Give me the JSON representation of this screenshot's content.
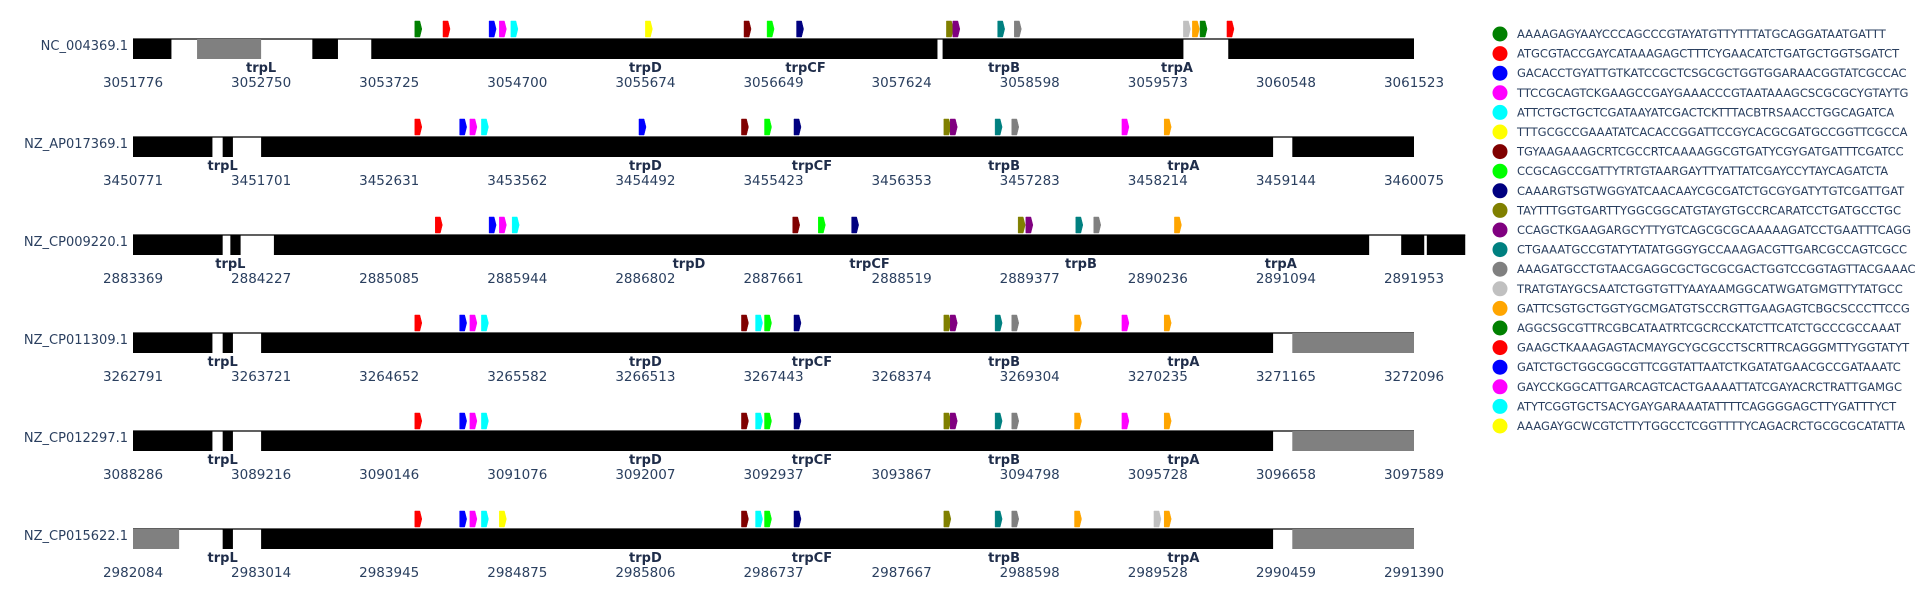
{
  "chart_data": {
    "type": "genome-track",
    "colors": {
      "gene": "#000000",
      "gray_region": "#808080",
      "axis_text": "#2a3f5f"
    },
    "motifs": [
      {
        "color": "#008000",
        "sequence": "AAAAGAGYAAYCCCAGCCCGTAYATGTTYTTTATGCAGGATAATGATTT"
      },
      {
        "color": "#ff0000",
        "sequence": "ATGCGTACCGAYCATAAAGAGCTTTCYGAACATCTGATGCTGGTSGATCT"
      },
      {
        "color": "#0000ff",
        "sequence": "GACACCTGYATTGTKATCCGCTCSGCGCTGGTGGARAACGGTATCGCCAC"
      },
      {
        "color": "#ff00ff",
        "sequence": "TTCCGCAGTCKGAAGCCGAYGAAACCCGTAATAAAGCSCGCGCYGTAYTG"
      },
      {
        "color": "#00ffff",
        "sequence": "ATTCTGCTGCTCGATAAYATCGACTCKTTTACBTRSAACCTGGCAGATCA"
      },
      {
        "color": "#ffff00",
        "sequence": "TTTGCGCCGAAATATCACACCGGATTCCGYCACGCGATGCCGGTTCGCCA"
      },
      {
        "color": "#800000",
        "sequence": "TGYAAGAAAGCRTCGCCRTCAAAAGGCGTGATYCGYGATGATTTCGATCC"
      },
      {
        "color": "#00ff00",
        "sequence": "CCGCAGCCGATTYTRTGTAARGAYTTYATTATCGAYCCYTAYCAGATCTA"
      },
      {
        "color": "#000080",
        "sequence": "CAAARGTSGTWGGYATCAACAAYCGCGATCTGCGYGATYTGTCGATTGAT"
      },
      {
        "color": "#808000",
        "sequence": "TAYTTTGGTGARTTYGGCGGCATGTAYGTGCCRCARATCCTGATGCCTGC"
      },
      {
        "color": "#800080",
        "sequence": "CCAGCTKGAAGARGCYTTYGTCAGCGCGCAAAAAGATCCTGAATTTCAGG"
      },
      {
        "color": "#008080",
        "sequence": "CTGAAATGCCGTATYTATATGGGYGCCAAAGACGTTGARCGCCAGTCGCC"
      },
      {
        "color": "#808080",
        "sequence": "AAAGATGCCTGTAACGAGGCGCTGCGCGACTGGTCCGGTAGTTACGAAAC"
      },
      {
        "color": "#c0c0c0",
        "sequence": "TRATGTAYGCSAATCTGGTGTTYAAYAAMGGCATWGATGMGTTYTATGCC"
      },
      {
        "color": "#ffa500",
        "sequence": "GATTCSGTGCTGGTYGCMGATGTSCCRGTTGAAGAGTCBGCSCCCTTCCG"
      },
      {
        "color": "#008000",
        "sequence": "AGGCSGCGTTRCGBCATAATRTCGCRCCKATCTTCATCTGCCCGCCAAAT"
      },
      {
        "color": "#ff0000",
        "sequence": "GAAGCTKAAAGAGTACMAYGCYGCGCCTSCRTTRCAGGGMTTYGGTATYT"
      },
      {
        "color": "#0000ff",
        "sequence": "GATCTGCTGGCGGCGTTCGGTATTAATCTKGATATGAACGCCGATAAATC"
      },
      {
        "color": "#ff00ff",
        "sequence": "GAYCCKGGCATTGARCAGTCACTGAAAATTATCGAYACRCTRATTGAMGC"
      },
      {
        "color": "#00ffff",
        "sequence": "ATYTCGGTGCTSACYGAYGARAAATATTTTCAGGGGAGCTTYGATTTYCT"
      },
      {
        "color": "#ffff00",
        "sequence": "AAAGAYGCWCGTCTTYTGGCCTCGGTTTTYCAGACRCTGCGCGCATATTA"
      }
    ],
    "tracks": [
      {
        "name": "NC_004369.1",
        "ticks": [
          "3051776",
          "3052750",
          "3053725",
          "3054700",
          "3055674",
          "3056649",
          "3057624",
          "3058598",
          "3059573",
          "3060548",
          "3061523"
        ],
        "blocks": [
          {
            "start": 0,
            "end": 0.3,
            "type": "gene"
          },
          {
            "start": 0.5,
            "end": 1.0,
            "type": "gray"
          },
          {
            "start": 1.4,
            "end": 1.6,
            "type": "gene"
          },
          {
            "start": 1.86,
            "end": 6.28,
            "type": "gene"
          },
          {
            "start": 6.32,
            "end": 8.2,
            "type": "gene"
          },
          {
            "start": 8.55,
            "end": 10.0,
            "type": "gene"
          }
        ],
        "genes": [
          {
            "name": "trpL",
            "pos": 1.0
          },
          {
            "name": "trpD",
            "pos": 4.0
          },
          {
            "name": "trpCF",
            "pos": 5.25
          },
          {
            "name": "trpB",
            "pos": 6.8
          },
          {
            "name": "trpA",
            "pos": 8.15
          }
        ],
        "motif_hits": [
          {
            "motif": 0,
            "pos": 2.2
          },
          {
            "motif": 1,
            "pos": 2.42
          },
          {
            "motif": 2,
            "pos": 2.78
          },
          {
            "motif": 3,
            "pos": 2.86
          },
          {
            "motif": 4,
            "pos": 2.95
          },
          {
            "motif": 5,
            "pos": 4.0
          },
          {
            "motif": 6,
            "pos": 4.77
          },
          {
            "motif": 7,
            "pos": 4.95
          },
          {
            "motif": 8,
            "pos": 5.18
          },
          {
            "motif": 9,
            "pos": 6.35
          },
          {
            "motif": 10,
            "pos": 6.4
          },
          {
            "motif": 11,
            "pos": 6.75
          },
          {
            "motif": 12,
            "pos": 6.88
          },
          {
            "motif": 13,
            "pos": 8.2
          },
          {
            "motif": 14,
            "pos": 8.27
          },
          {
            "motif": 15,
            "pos": 8.33
          },
          {
            "motif": 16,
            "pos": 8.54
          }
        ]
      },
      {
        "name": "NZ_AP017369.1",
        "ticks": [
          "3450771",
          "3451701",
          "3452631",
          "3453562",
          "3454492",
          "3455423",
          "3456353",
          "3457283",
          "3458214",
          "3459144",
          "3460075"
        ],
        "blocks": [
          {
            "start": 0,
            "end": 0.62,
            "type": "gene"
          },
          {
            "start": 0.7,
            "end": 0.78,
            "type": "gene"
          },
          {
            "start": 1.0,
            "end": 8.9,
            "type": "gene"
          },
          {
            "start": 9.05,
            "end": 10.0,
            "type": "gene"
          }
        ],
        "genes": [
          {
            "name": "trpL",
            "pos": 0.7
          },
          {
            "name": "trpD",
            "pos": 4.0
          },
          {
            "name": "trpCF",
            "pos": 5.3
          },
          {
            "name": "trpB",
            "pos": 6.8
          },
          {
            "name": "trpA",
            "pos": 8.2
          }
        ],
        "motif_hits": [
          {
            "motif": 1,
            "pos": 2.2
          },
          {
            "motif": 2,
            "pos": 2.55
          },
          {
            "motif": 3,
            "pos": 2.63
          },
          {
            "motif": 4,
            "pos": 2.72
          },
          {
            "motif": 17,
            "pos": 3.95
          },
          {
            "motif": 6,
            "pos": 4.75
          },
          {
            "motif": 7,
            "pos": 4.93
          },
          {
            "motif": 8,
            "pos": 5.16
          },
          {
            "motif": 9,
            "pos": 6.33
          },
          {
            "motif": 10,
            "pos": 6.38
          },
          {
            "motif": 11,
            "pos": 6.73
          },
          {
            "motif": 12,
            "pos": 6.86
          },
          {
            "motif": 18,
            "pos": 7.72
          },
          {
            "motif": 14,
            "pos": 8.05
          }
        ]
      },
      {
        "name": "NZ_CP009220.1",
        "ticks": [
          "2883369",
          "2884227",
          "2885085",
          "2885944",
          "2886802",
          "2887661",
          "2888519",
          "2889377",
          "2890236",
          "2891094",
          "2891953"
        ],
        "blocks": [
          {
            "start": 0,
            "end": 0.7,
            "type": "gene"
          },
          {
            "start": 0.76,
            "end": 0.84,
            "type": "gene"
          },
          {
            "start": 1.1,
            "end": 9.65,
            "type": "gene"
          },
          {
            "start": 9.9,
            "end": 10.08,
            "type": "gene"
          },
          {
            "start": 10.1,
            "end": 10.4,
            "type": "gene"
          }
        ],
        "genes": [
          {
            "name": "trpL",
            "pos": 0.76
          },
          {
            "name": "trpD",
            "pos": 4.34
          },
          {
            "name": "trpCF",
            "pos": 5.75
          },
          {
            "name": "trpB",
            "pos": 7.4
          },
          {
            "name": "trpA",
            "pos": 8.96
          }
        ],
        "motif_hits": [
          {
            "motif": 1,
            "pos": 2.36
          },
          {
            "motif": 2,
            "pos": 2.78
          },
          {
            "motif": 3,
            "pos": 2.86
          },
          {
            "motif": 4,
            "pos": 2.96
          },
          {
            "motif": 6,
            "pos": 5.15
          },
          {
            "motif": 7,
            "pos": 5.35
          },
          {
            "motif": 8,
            "pos": 5.61
          },
          {
            "motif": 9,
            "pos": 6.91
          },
          {
            "motif": 10,
            "pos": 6.97
          },
          {
            "motif": 11,
            "pos": 7.36
          },
          {
            "motif": 12,
            "pos": 7.5
          },
          {
            "motif": 14,
            "pos": 8.13
          }
        ]
      },
      {
        "name": "NZ_CP011309.1",
        "ticks": [
          "3262791",
          "3263721",
          "3264652",
          "3265582",
          "3266513",
          "3267443",
          "3268374",
          "3269304",
          "3270235",
          "3271165",
          "3272096"
        ],
        "blocks": [
          {
            "start": 0,
            "end": 0.62,
            "type": "gene"
          },
          {
            "start": 0.7,
            "end": 0.78,
            "type": "gene"
          },
          {
            "start": 1.0,
            "end": 8.9,
            "type": "gene"
          },
          {
            "start": 9.05,
            "end": 10.0,
            "type": "gray"
          }
        ],
        "genes": [
          {
            "name": "trpL",
            "pos": 0.7
          },
          {
            "name": "trpD",
            "pos": 4.0
          },
          {
            "name": "trpCF",
            "pos": 5.3
          },
          {
            "name": "trpB",
            "pos": 6.8
          },
          {
            "name": "trpA",
            "pos": 8.2
          }
        ],
        "motif_hits": [
          {
            "motif": 1,
            "pos": 2.2
          },
          {
            "motif": 2,
            "pos": 2.55
          },
          {
            "motif": 3,
            "pos": 2.63
          },
          {
            "motif": 4,
            "pos": 2.72
          },
          {
            "motif": 6,
            "pos": 4.75
          },
          {
            "motif": 19,
            "pos": 4.86
          },
          {
            "motif": 7,
            "pos": 4.93
          },
          {
            "motif": 8,
            "pos": 5.16
          },
          {
            "motif": 9,
            "pos": 6.33
          },
          {
            "motif": 10,
            "pos": 6.38
          },
          {
            "motif": 11,
            "pos": 6.73
          },
          {
            "motif": 12,
            "pos": 6.86
          },
          {
            "motif": 14,
            "pos": 7.35
          },
          {
            "motif": 18,
            "pos": 7.72
          },
          {
            "motif": 14,
            "pos": 8.05
          }
        ]
      },
      {
        "name": "NZ_CP012297.1",
        "ticks": [
          "3088286",
          "3089216",
          "3090146",
          "3091076",
          "3092007",
          "3092937",
          "3093867",
          "3094798",
          "3095728",
          "3096658",
          "3097589"
        ],
        "blocks": [
          {
            "start": 0,
            "end": 0.62,
            "type": "gene"
          },
          {
            "start": 0.7,
            "end": 0.78,
            "type": "gene"
          },
          {
            "start": 1.0,
            "end": 8.9,
            "type": "gene"
          },
          {
            "start": 9.05,
            "end": 10.0,
            "type": "gray"
          }
        ],
        "genes": [
          {
            "name": "trpL",
            "pos": 0.7
          },
          {
            "name": "trpD",
            "pos": 4.0
          },
          {
            "name": "trpCF",
            "pos": 5.3
          },
          {
            "name": "trpB",
            "pos": 6.8
          },
          {
            "name": "trpA",
            "pos": 8.2
          }
        ],
        "motif_hits": [
          {
            "motif": 1,
            "pos": 2.2
          },
          {
            "motif": 2,
            "pos": 2.55
          },
          {
            "motif": 3,
            "pos": 2.63
          },
          {
            "motif": 4,
            "pos": 2.72
          },
          {
            "motif": 6,
            "pos": 4.75
          },
          {
            "motif": 19,
            "pos": 4.86
          },
          {
            "motif": 7,
            "pos": 4.93
          },
          {
            "motif": 8,
            "pos": 5.16
          },
          {
            "motif": 9,
            "pos": 6.33
          },
          {
            "motif": 10,
            "pos": 6.38
          },
          {
            "motif": 11,
            "pos": 6.73
          },
          {
            "motif": 12,
            "pos": 6.86
          },
          {
            "motif": 14,
            "pos": 7.35
          },
          {
            "motif": 18,
            "pos": 7.72
          },
          {
            "motif": 14,
            "pos": 8.05
          }
        ]
      },
      {
        "name": "NZ_CP015622.1",
        "ticks": [
          "2982084",
          "2983014",
          "2983945",
          "2984875",
          "2985806",
          "2986737",
          "2987667",
          "2988598",
          "2989528",
          "2990459",
          "2991390"
        ],
        "blocks": [
          {
            "start": 0,
            "end": 0.36,
            "type": "gray"
          },
          {
            "start": 0.7,
            "end": 0.78,
            "type": "gene"
          },
          {
            "start": 1.0,
            "end": 8.9,
            "type": "gene"
          },
          {
            "start": 9.05,
            "end": 10.0,
            "type": "gray"
          }
        ],
        "genes": [
          {
            "name": "trpL",
            "pos": 0.7
          },
          {
            "name": "trpD",
            "pos": 4.0
          },
          {
            "name": "trpCF",
            "pos": 5.3
          },
          {
            "name": "trpB",
            "pos": 6.8
          },
          {
            "name": "trpA",
            "pos": 8.2
          }
        ],
        "motif_hits": [
          {
            "motif": 1,
            "pos": 2.2
          },
          {
            "motif": 2,
            "pos": 2.55
          },
          {
            "motif": 3,
            "pos": 2.63
          },
          {
            "motif": 4,
            "pos": 2.72
          },
          {
            "motif": 20,
            "pos": 2.86
          },
          {
            "motif": 6,
            "pos": 4.75
          },
          {
            "motif": 19,
            "pos": 4.86
          },
          {
            "motif": 7,
            "pos": 4.93
          },
          {
            "motif": 8,
            "pos": 5.16
          },
          {
            "motif": 9,
            "pos": 6.33
          },
          {
            "motif": 11,
            "pos": 6.73
          },
          {
            "motif": 12,
            "pos": 6.86
          },
          {
            "motif": 14,
            "pos": 7.35
          },
          {
            "motif": 13,
            "pos": 7.97
          },
          {
            "motif": 14,
            "pos": 8.05
          }
        ]
      }
    ]
  }
}
